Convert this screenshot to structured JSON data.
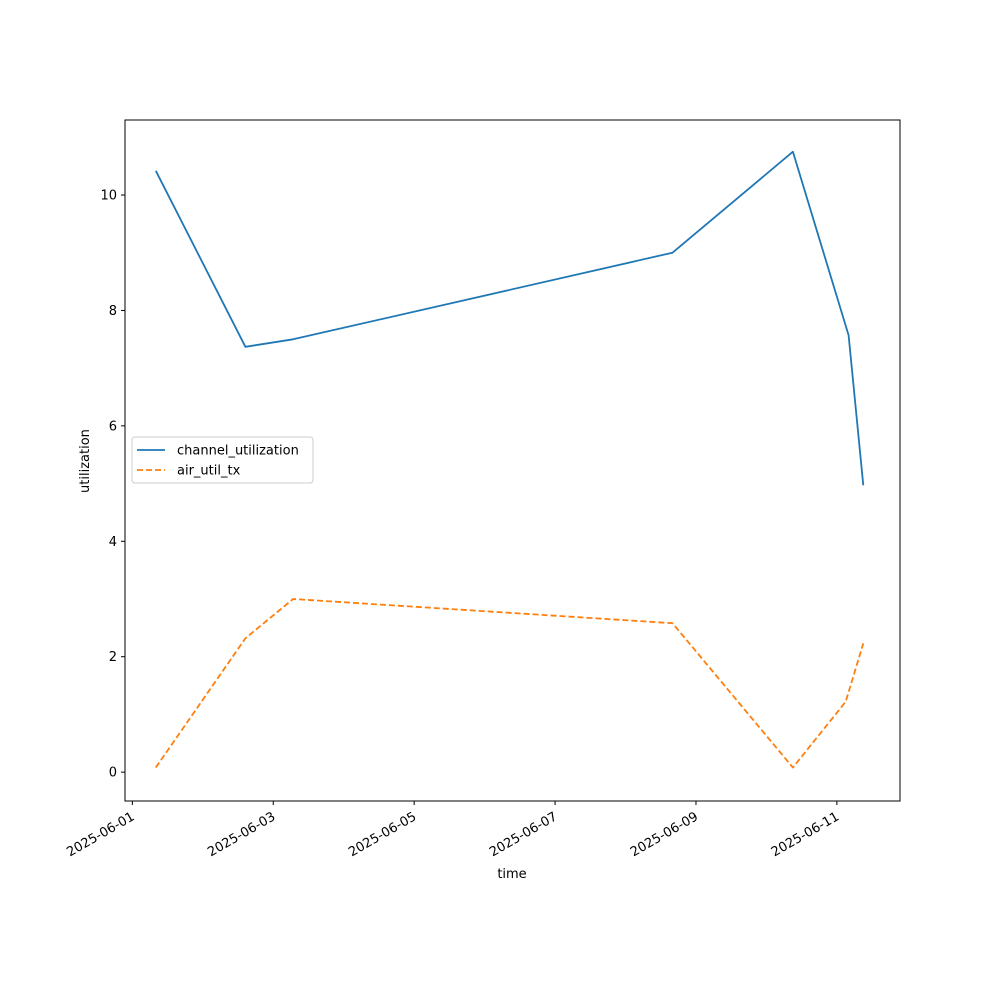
{
  "chart_data": {
    "type": "line",
    "xlabel": "time",
    "ylabel": "utilization",
    "xlim": [
      "2025-05-31T21:30",
      "2025-06-11T21:30"
    ],
    "ylim": [
      -0.5,
      11.3
    ],
    "x_ticks": [
      "2025-06-01",
      "2025-06-03",
      "2025-06-05",
      "2025-06-07",
      "2025-06-09",
      "2025-06-11"
    ],
    "y_ticks": [
      0,
      2,
      4,
      6,
      8,
      10
    ],
    "legend_position": "center-left",
    "grid": false,
    "series": [
      {
        "name": "channel_utilization",
        "color": "#1f77b4",
        "style": "solid",
        "points": [
          {
            "x": "2025-06-01T08:00",
            "y": 10.42
          },
          {
            "x": "2025-06-02T14:30",
            "y": 7.37
          },
          {
            "x": "2025-06-03T06:45",
            "y": 7.5
          },
          {
            "x": "2025-06-08T16:00",
            "y": 9.0
          },
          {
            "x": "2025-06-10T09:00",
            "y": 10.75
          },
          {
            "x": "2025-06-11T04:00",
            "y": 7.57
          },
          {
            "x": "2025-06-11T09:00",
            "y": 4.97
          }
        ]
      },
      {
        "name": "air_util_tx",
        "color": "#ff7f0e",
        "style": "dashed",
        "points": [
          {
            "x": "2025-06-01T08:00",
            "y": 0.08
          },
          {
            "x": "2025-06-02T14:30",
            "y": 2.32
          },
          {
            "x": "2025-06-03T06:45",
            "y": 3.0
          },
          {
            "x": "2025-06-08T16:00",
            "y": 2.58
          },
          {
            "x": "2025-06-10T09:00",
            "y": 0.08
          },
          {
            "x": "2025-06-11T03:00",
            "y": 1.22
          },
          {
            "x": "2025-06-11T09:00",
            "y": 2.23
          }
        ]
      }
    ]
  }
}
